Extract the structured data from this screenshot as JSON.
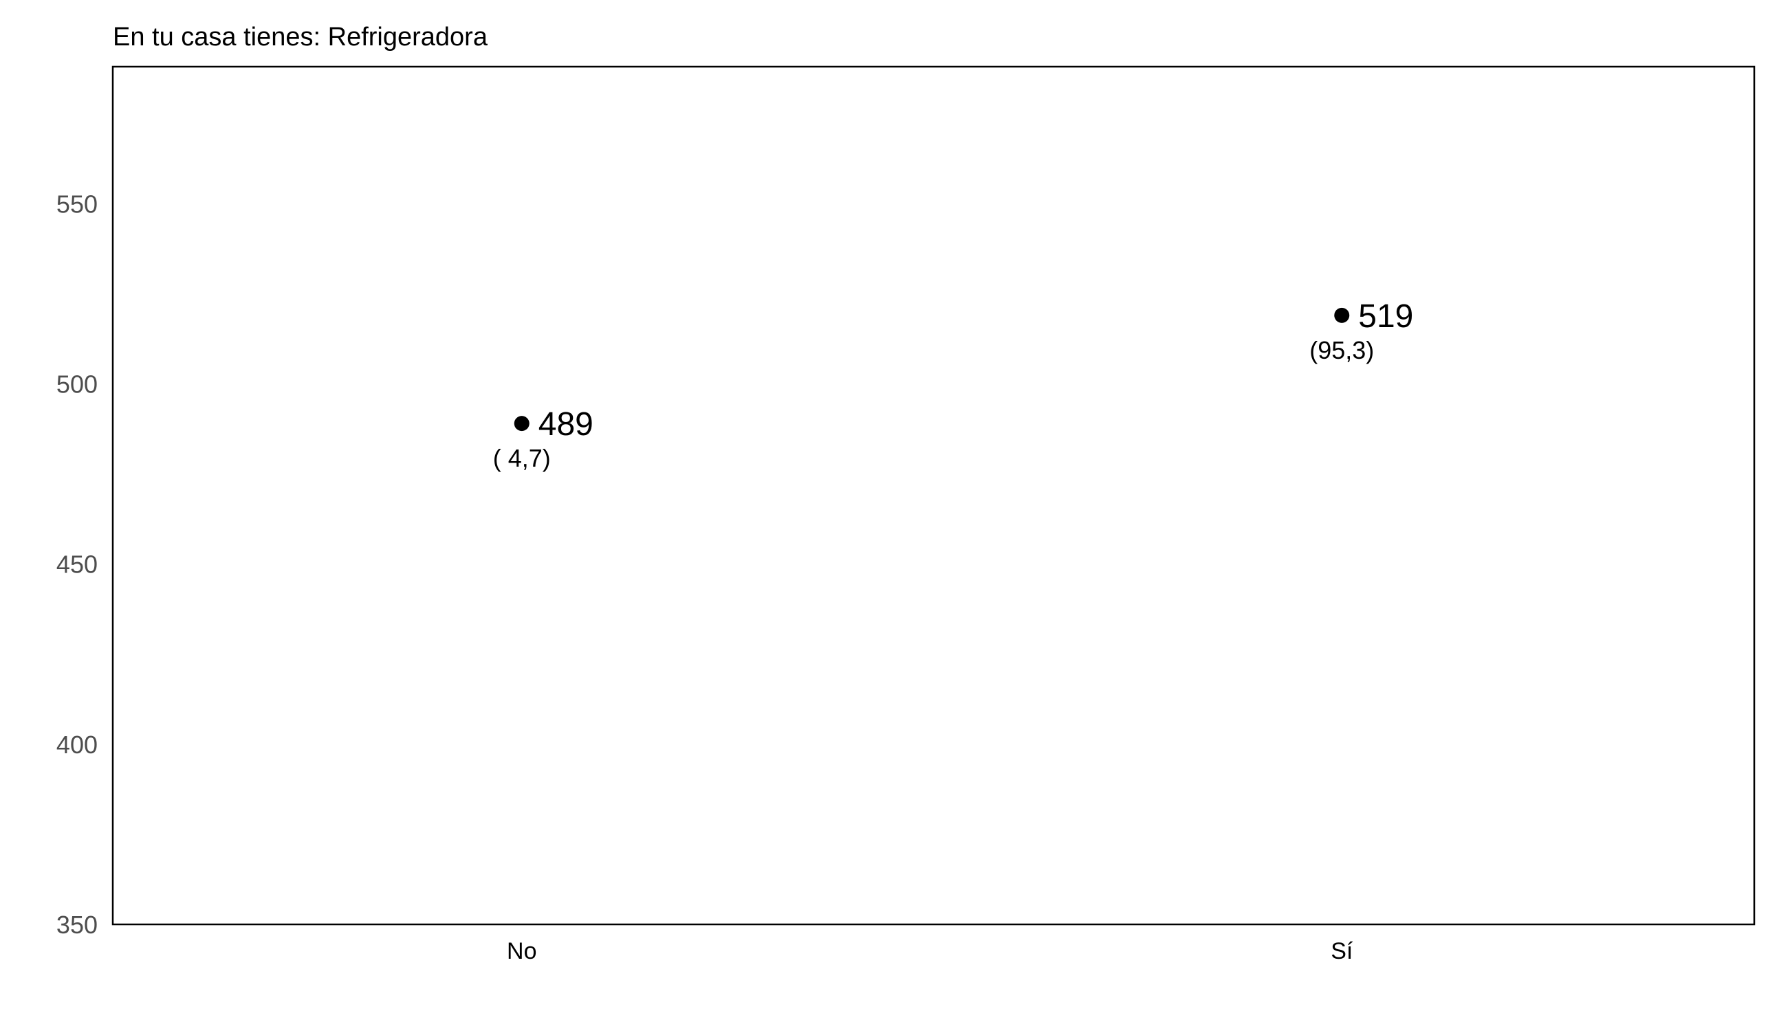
{
  "chart_data": {
    "type": "scatter",
    "title": "En tu casa tienes: Refrigeradora",
    "xlabel": "",
    "ylabel": "",
    "categories": [
      "No",
      "Sí"
    ],
    "values": [
      489,
      519
    ],
    "value_labels": [
      "489",
      "519"
    ],
    "secondary_labels": [
      "( 4,7)",
      "(95,3)"
    ],
    "ylim": [
      350,
      588
    ],
    "yticks": [
      350,
      400,
      450,
      500,
      550
    ],
    "ytick_labels": [
      "350",
      "400",
      "450",
      "500",
      "550"
    ],
    "grid": false,
    "legend": "none",
    "colors": {
      "point": "#000000",
      "frame": "#000000",
      "tick_text": "#4d4d4d"
    }
  }
}
